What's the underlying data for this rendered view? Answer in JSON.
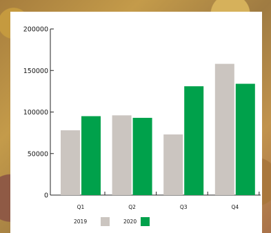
{
  "chart_data": {
    "type": "bar",
    "title": "",
    "xlabel": "",
    "ylabel": "",
    "categories": [
      "Q1",
      "Q2",
      "Q3",
      "Q4"
    ],
    "series": [
      {
        "name": "2019",
        "values": [
          78000,
          96000,
          73000,
          158000
        ]
      },
      {
        "name": "2020",
        "values": [
          95000,
          93000,
          131000,
          134000
        ]
      }
    ],
    "ylim": [
      0,
      200000
    ],
    "yticks": [
      "200000",
      "150000",
      "100000",
      "50000",
      "0"
    ],
    "grid": false,
    "legend_position": "bottom-left",
    "colors": {
      "2019": "#cbc5c0",
      "2020": "#00a14b",
      "axis": "#222222"
    }
  }
}
